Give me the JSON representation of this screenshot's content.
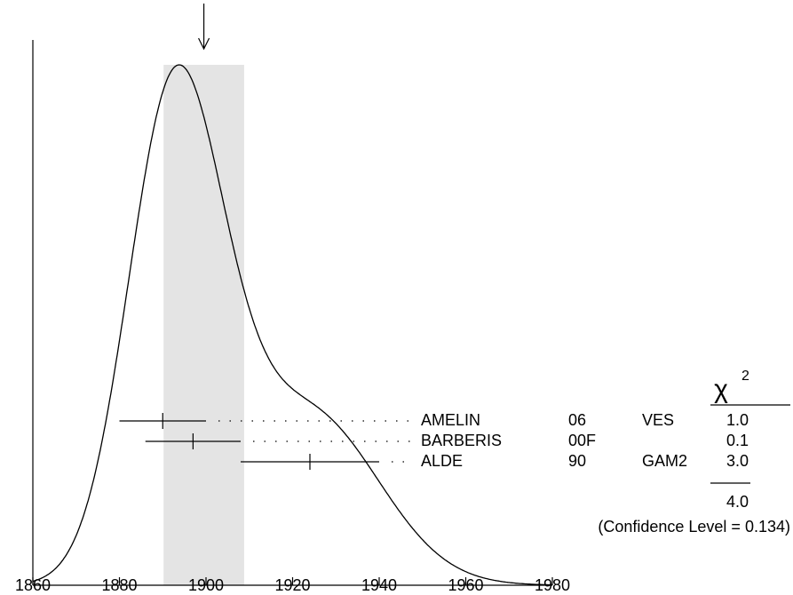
{
  "chart_data": {
    "type": "ideogram",
    "xlim": [
      1860,
      1980
    ],
    "xticks": [
      1860,
      1880,
      1900,
      1920,
      1940,
      1960,
      1980
    ],
    "average": 1899.5,
    "average_error": 9.3,
    "band": [
      1890.2,
      1908.8
    ],
    "measurements": [
      {
        "name": "AMELIN",
        "year": "06",
        "technique": "VES",
        "value": 1890,
        "error": 10,
        "chi2": "1.0"
      },
      {
        "name": "BARBERIS",
        "year": "00F",
        "technique": null,
        "value": 1897,
        "error": 11,
        "chi2": "0.1"
      },
      {
        "name": "ALDE",
        "year": "90",
        "technique": "GAM2",
        "value": 1924,
        "error": 16,
        "chi2": "3.0"
      }
    ],
    "chi2_symbol": "χ",
    "chi2_exponent": "2",
    "chi2_total": "4.0",
    "confidence_level": "(Confidence Level = 0.134)"
  }
}
